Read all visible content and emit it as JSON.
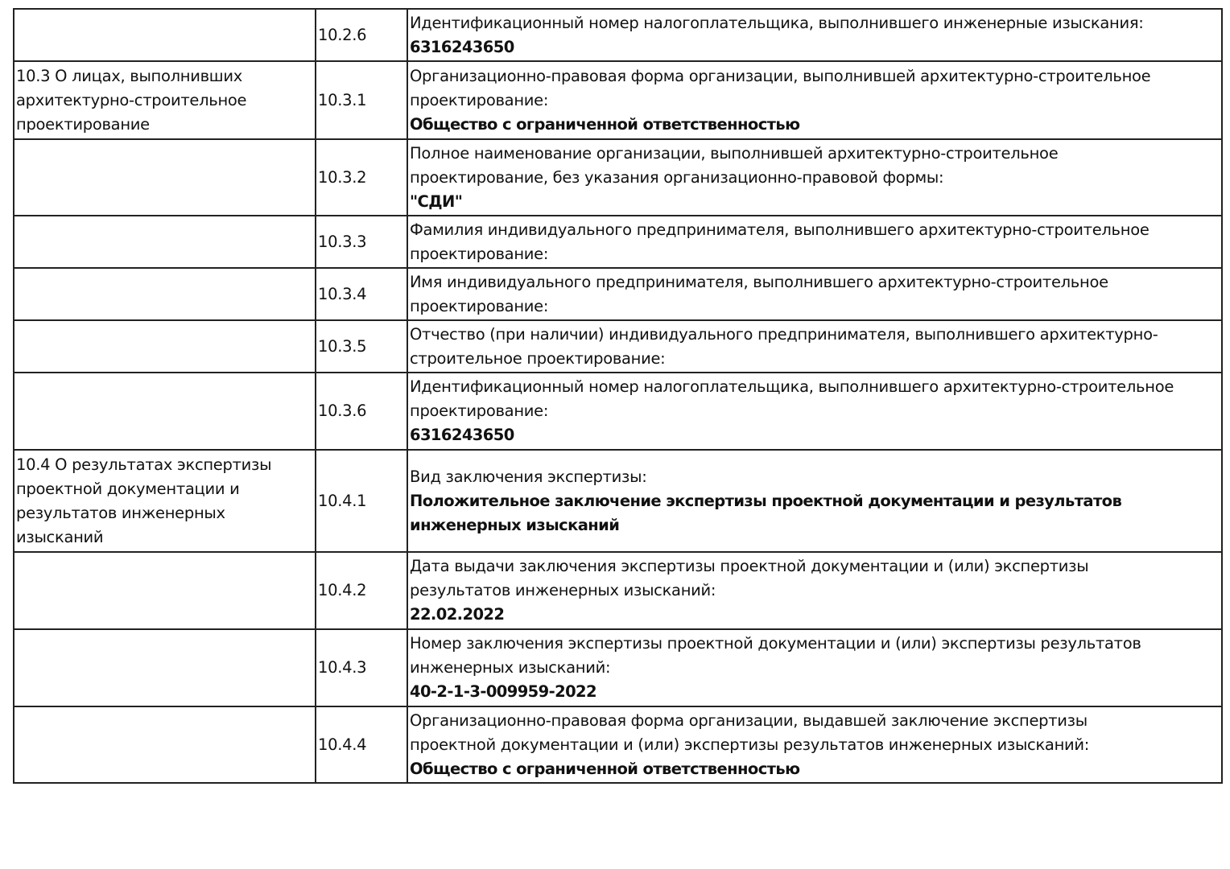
{
  "rows": [
    {
      "group": [],
      "code": "10.2.6",
      "lines": [
        "Идентификационный номер налогоплательщика, выполнившего инженерные изыскания:"
      ],
      "value": [
        "6316243650"
      ]
    },
    {
      "group": [
        "10.3 О лицах, выполнивших",
        "архитектурно-строительное",
        "проектирование"
      ],
      "code": "10.3.1",
      "lines": [
        "Организационно-правовая форма организации, выполнившей архитектурно-строительное",
        "проектирование:"
      ],
      "value": [
        "Общество с ограниченной ответственностью"
      ]
    },
    {
      "group": [],
      "code": "10.3.2",
      "lines": [
        "Полное наименование организации, выполнившей архитектурно-строительное",
        "проектирование, без указания организационно-правовой формы:"
      ],
      "value": [
        "\"СДИ\""
      ]
    },
    {
      "group": [],
      "code": "10.3.3",
      "lines": [
        "Фамилия индивидуального предпринимателя, выполнившего архитектурно-строительное",
        "проектирование:"
      ],
      "value": []
    },
    {
      "group": [],
      "code": "10.3.4",
      "lines": [
        "Имя индивидуального предпринимателя, выполнившего архитектурно-строительное",
        "проектирование:"
      ],
      "value": []
    },
    {
      "group": [],
      "code": "10.3.5",
      "lines": [
        "Отчество (при наличии) индивидуального предпринимателя, выполнившего архитектурно-",
        "строительное проектирование:"
      ],
      "value": []
    },
    {
      "group": [],
      "code": "10.3.6",
      "lines": [
        "Идентификационный номер налогоплательщика, выполнившего архитектурно-строительное",
        "проектирование:"
      ],
      "value": [
        "6316243650"
      ]
    },
    {
      "group": [
        "10.4 О результатах экспертизы",
        "проектной документации и",
        "результатов инженерных",
        "изысканий"
      ],
      "code": "10.4.1",
      "lines": [
        "Вид заключения экспертизы:"
      ],
      "value": [
        "Положительное заключение экспертизы проектной документации и результатов",
        "инженерных изысканий"
      ]
    },
    {
      "group": [],
      "code": "10.4.2",
      "lines": [
        "Дата выдачи заключения экспертизы проектной документации и (или) экспертизы",
        "результатов инженерных изысканий:"
      ],
      "value": [
        "22.02.2022"
      ]
    },
    {
      "group": [],
      "code": "10.4.3",
      "lines": [
        "Номер заключения экспертизы проектной документации и (или) экспертизы результатов",
        "инженерных изысканий:"
      ],
      "value": [
        "40-2-1-3-009959-2022"
      ]
    },
    {
      "group": [],
      "code": "10.4.4",
      "lines": [
        "Организационно-правовая форма организации, выдавшей заключение экспертизы",
        "проектной документации и (или) экспертизы результатов инженерных изысканий:"
      ],
      "value": [
        "Общество с ограниченной ответственностью"
      ]
    }
  ]
}
